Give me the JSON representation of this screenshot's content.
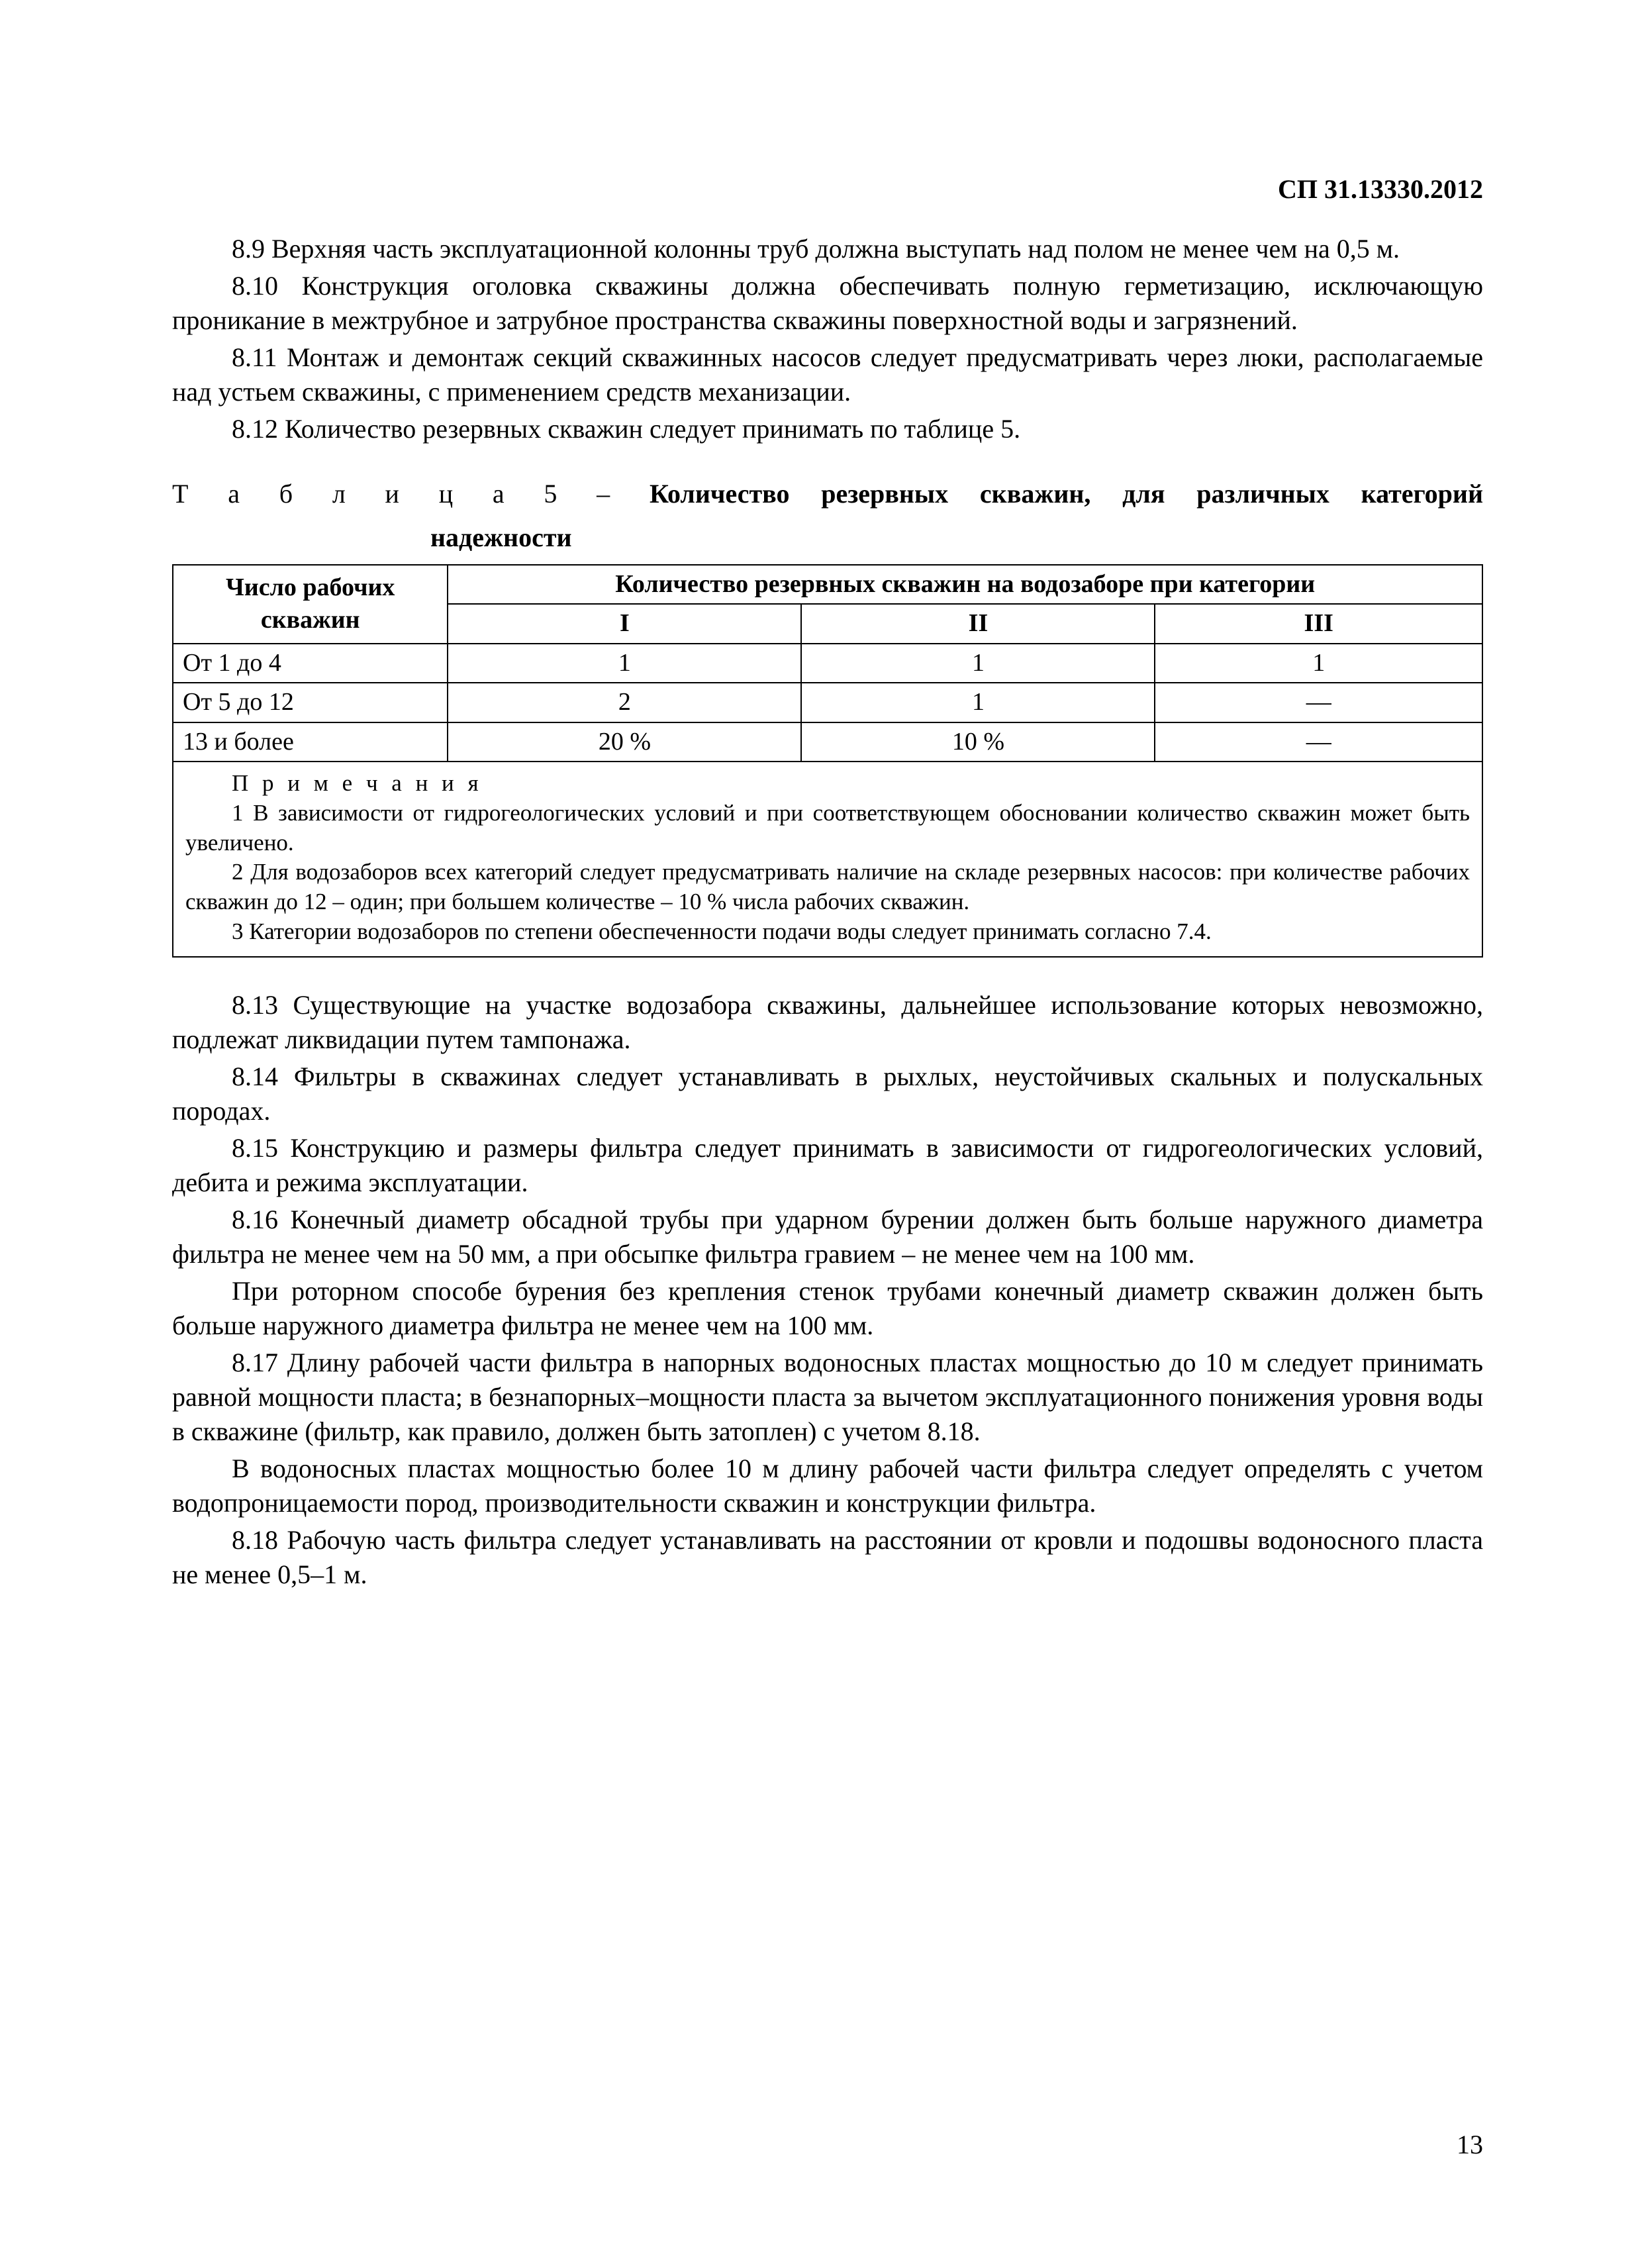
{
  "doc": {
    "code": "СП 31.13330.2012",
    "page_number": "13"
  },
  "paras": {
    "p8_9": "8.9 Верхняя часть эксплуатационной колонны труб должна выступать над полом не менее чем на 0,5 м.",
    "p8_10": "8.10 Конструкция оголовка скважины должна обеспечивать полную герметизацию, исключающую проникание в межтрубное и затрубное пространства скважины поверхностной воды и загрязнений.",
    "p8_11": "8.11 Монтаж и демонтаж секций скважинных насосов следует предусматривать через люки, располагаемые над устьем скважины, с применением средств механизации.",
    "p8_12": "8.12 Количество резервных скважин следует принимать по таблице 5.",
    "p8_13": "8.13 Существующие на участке водозабора скважины, дальнейшее использование которых невозможно, подлежат ликвидации путем тампонажа.",
    "p8_14": "8.14 Фильтры в скважинах следует устанавливать в рыхлых, неустойчивых скальных и полускальных породах.",
    "p8_15": "8.15 Конструкцию и размеры фильтра следует принимать в зависимости от гидрогеологических условий, дебита и режима эксплуатации.",
    "p8_16": "8.16 Конечный диаметр обсадной трубы при ударном бурении должен быть больше наружного диаметра фильтра не менее чем на 50 мм, а при обсыпке фильтра гравием  – не менее чем на 100 мм.",
    "p8_16b": "При роторном способе бурения без крепления стенок трубами конечный диаметр скважин должен быть больше наружного диаметра фильтра не менее чем на 100 мм.",
    "p8_17": "8.17 Длину рабочей части фильтра в напорных водоносных пластах мощностью до 10 м следует принимать равной мощности пласта; в безнапорных–мощности пласта за вычетом эксплуатационного понижения уровня воды в скважине (фильтр, как правило, должен быть затоплен) с учетом 8.18.",
    "p8_17b": "В водоносных пластах мощностью более 10 м длину рабочей части фильтра следует определять с учетом водопроницаемости пород, производительности скважин и конструкции фильтра.",
    "p8_18": "8.18 Рабочую часть фильтра следует устанавливать на расстоянии от кровли и подошвы водоносного пласта не менее 0,5–1 м."
  },
  "table": {
    "caption_prefix": "Т а б л и ц а  5 – ",
    "caption_bold_l1": "Количество   резервных   скважин,   для   различных   категорий",
    "caption_bold_l2": "надежности",
    "head_col1": "Число  рабочих скважин",
    "head_span": "Количество резервных скважин на водозаборе при категории",
    "sub_I": "I",
    "sub_II": "II",
    "sub_III": "III",
    "rows": [
      {
        "c0": "От 1 до 4",
        "c1": "1",
        "c2": "1",
        "c3": "1"
      },
      {
        "c0": "От 5 до 12",
        "c1": "2",
        "c2": "1",
        "c3": "—"
      },
      {
        "c0": "13 и более",
        "c1": "20 %",
        "c2": "10 %",
        "c3": "—"
      }
    ],
    "col_widths": [
      "21%",
      "27%",
      "27%",
      "25%"
    ]
  },
  "notes": {
    "title": "П р и м е ч а н и я",
    "n1": "1 В зависимости от гидрогеологических условий и при соответствующем обосновании количество скважин может быть увеличено.",
    "n2": "2 Для водозаборов всех категорий следует предусматривать наличие на складе резервных насосов: при количестве рабочих скважин до 12 – один; при большем количестве – 10 % числа рабочих скважин.",
    "n3": "3 Категории водозаборов по степени обеспеченности подачи воды следует принимать согласно 7.4."
  }
}
